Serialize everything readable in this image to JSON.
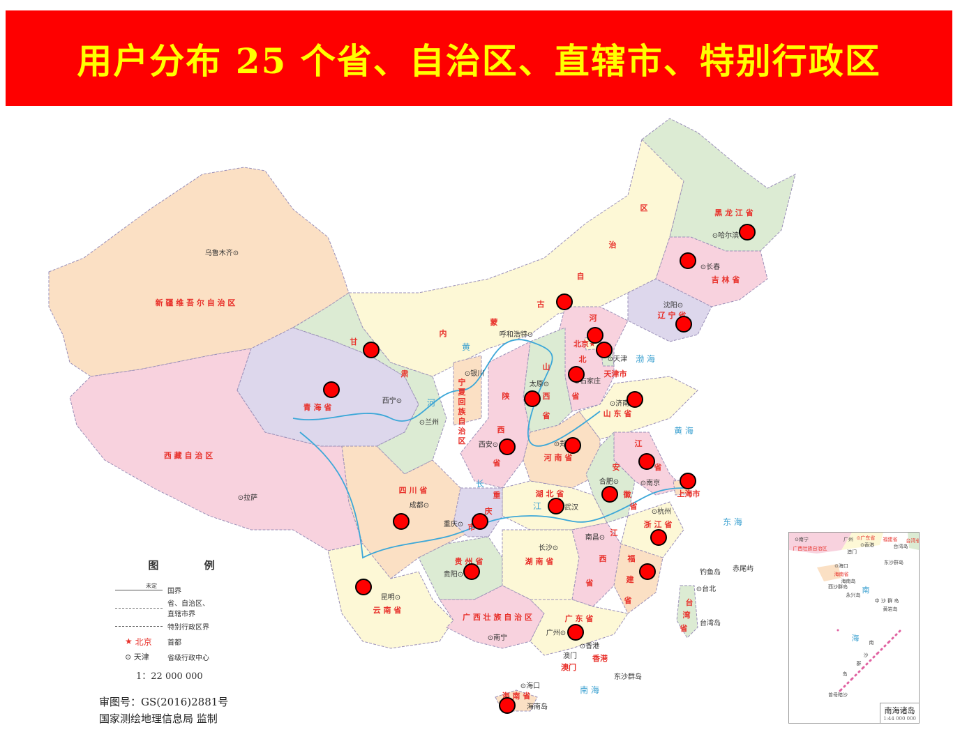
{
  "title": "用户分布 25 个省、自治区、直辖市、特别行政区",
  "colors": {
    "banner": "#fe0000",
    "title_text": "#ffff00",
    "marker": "#ff0000",
    "province_label": "#e8302a",
    "city_label": "#333333",
    "sea_label": "#3aa0d0",
    "river": "#3ba7d8",
    "border": "#8a7fb0"
  },
  "province_labels": [
    "新 疆 维 吾 尔 自 治 区",
    "西 藏 自 治 区",
    "青 海 省",
    "甘",
    "肃",
    "内",
    "蒙",
    "古",
    "自",
    "治",
    "区",
    "黑 龙 江 省",
    "吉 林 省",
    "辽 宁 省",
    "河",
    "北",
    "省",
    "山",
    "西",
    "省",
    "陕",
    "西",
    "省",
    "宁",
    "夏",
    "回",
    "族",
    "自",
    "治",
    "区",
    "山 东 省",
    "河 南 省",
    "江",
    "省",
    "安",
    "徽",
    "省",
    "湖 北 省",
    "四 川 省",
    "重",
    "庆",
    "市",
    "浙 江 省",
    "江",
    "西",
    "省",
    "福",
    "建",
    "省",
    "湖 南 省",
    "贵 州 省",
    "云 南 省",
    "广 西 壮 族 自 治 区",
    "广 东 省",
    "台",
    "湾",
    "省",
    "海 南 省",
    "上海市",
    "北京★",
    "天津市",
    "香港",
    "澳门"
  ],
  "city_labels": [
    "乌鲁木齐⊙",
    "⊙拉萨",
    "西宁⊙",
    "⊙兰州",
    "⊙银川",
    "呼和浩特⊙",
    "太原⊙",
    "⊙石家庄",
    "⊙天津",
    "⊙济南",
    "⊙郑州",
    "西安⊙",
    "合肥⊙",
    "⊙南京",
    "⊙杭州",
    "⊙武汉",
    "成都⊙",
    "重庆⊙",
    "长沙⊙",
    "南昌⊙",
    "贵阳⊙",
    "昆明⊙",
    "⊙南宁",
    "广州⊙",
    "⊙香港",
    "澳门",
    "⊙海口",
    "海南岛",
    "⊙台北",
    "台湾岛",
    "沈阳⊙",
    "⊙长春",
    "⊙哈尔滨",
    "东沙群岛",
    "钓鱼岛",
    "赤尾屿"
  ],
  "sea_labels": [
    "渤 海",
    "黄 海",
    "东 海",
    "南 海",
    "黄",
    "河",
    "长",
    "江"
  ],
  "markers_count": 25,
  "legend": {
    "title": "图 例",
    "undetermined": "未定",
    "items": [
      {
        "symbol": "national-border",
        "label": "国界"
      },
      {
        "symbol": "provincial-border",
        "label": "省、自治区、直辖市界"
      },
      {
        "symbol": "sar-border",
        "label": "特别行政区界"
      },
      {
        "symbol": "capital-star",
        "sample": "北京",
        "label": "首都"
      },
      {
        "symbol": "provincial-capital",
        "sample": "天津",
        "label": "省级行政中心"
      }
    ],
    "scale": "1：22 000 000"
  },
  "approval": {
    "number": "审图号：GS(2016)2881号",
    "agency": "国家测绘地理信息局 监制"
  },
  "inset": {
    "title": "南海诸岛",
    "scale": "1:44 000 000",
    "labels": [
      "⊙南宁",
      "广州",
      "⊙广东省",
      "⊙香港",
      "澳门",
      "广西壮族自治区",
      "福建省",
      "台湾岛",
      "台湾省",
      "东沙群岛",
      "⊙海口",
      "海南省",
      "海南岛",
      "西沙群岛",
      "永兴岛",
      "南",
      "中 沙 群 岛",
      "黄岩岛",
      "海",
      "南",
      "沙",
      "群",
      "岛",
      "曾母暗沙"
    ]
  }
}
